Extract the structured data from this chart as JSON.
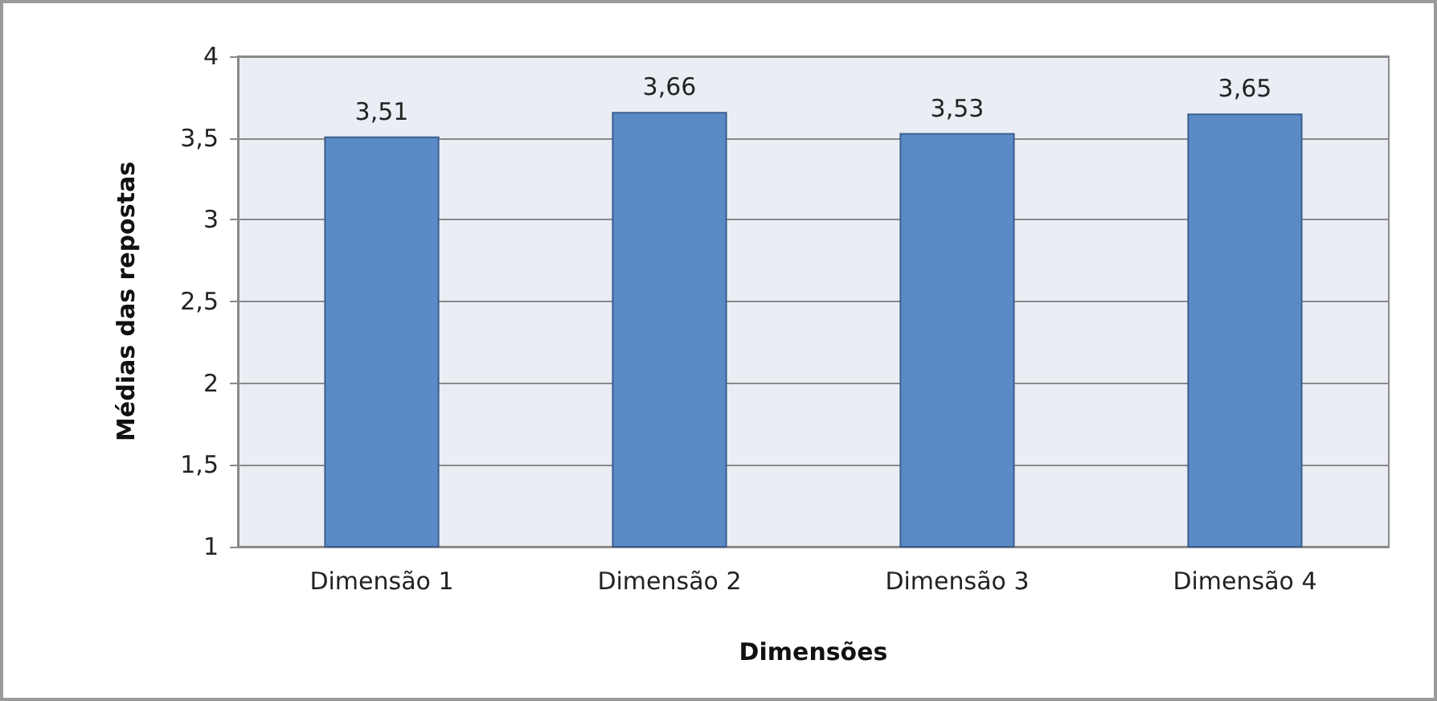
{
  "chart_data": {
    "type": "bar",
    "xlabel": "Dimensões",
    "ylabel": "Médias das repostas",
    "categories": [
      "Dimensão 1",
      "Dimensão 2",
      "Dimensão 3",
      "Dimensão 4"
    ],
    "values": [
      3.51,
      3.66,
      3.53,
      3.65
    ],
    "color": "#5b8bc7",
    "value_labels": [
      "3,51",
      "3,66",
      "3,53",
      "3,65"
    ],
    "ylim": [
      1,
      4
    ],
    "yticks": [
      {
        "value": 1,
        "label": "1"
      },
      {
        "value": 1.5,
        "label": "1,5"
      },
      {
        "value": 2,
        "label": "2"
      },
      {
        "value": 2.5,
        "label": "2,5"
      },
      {
        "value": 3,
        "label": "3"
      },
      {
        "value": 3.5,
        "label": "3,5"
      },
      {
        "value": 4,
        "label": "4"
      }
    ],
    "grid": true
  }
}
